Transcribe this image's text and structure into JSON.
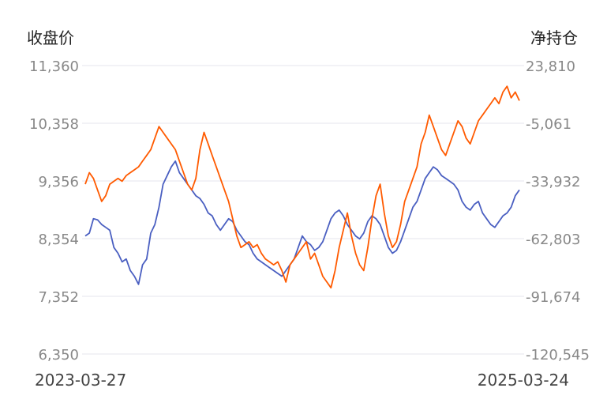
{
  "chart_data": {
    "type": "line",
    "left_axis_title": "收盘价",
    "right_axis_title": "净持仓",
    "left_ticks": [
      "11,360",
      "10,358",
      "9,356",
      "8,354",
      "7,352",
      "6,350"
    ],
    "right_ticks": [
      "23,810",
      "-5,061",
      "-33,932",
      "-62,803",
      "-91,674",
      "-120,545"
    ],
    "left_ylim": [
      6350,
      11360
    ],
    "right_ylim": [
      -120545,
      23810
    ],
    "x_start_label": "2023-03-27",
    "x_end_label": "2025-03-24",
    "grid": true,
    "colors": {
      "close": "#4a5fc1",
      "net": "#ff5a00"
    },
    "series": [
      {
        "key": "close",
        "axis": "left",
        "values": [
          8400,
          8450,
          8700,
          8680,
          8600,
          8550,
          8500,
          8200,
          8100,
          7950,
          8000,
          7800,
          7700,
          7560,
          7900,
          8000,
          8450,
          8600,
          8900,
          9300,
          9450,
          9600,
          9700,
          9500,
          9400,
          9300,
          9200,
          9100,
          9050,
          8950,
          8800,
          8750,
          8600,
          8500,
          8600,
          8700,
          8650,
          8500,
          8400,
          8300,
          8250,
          8100,
          8000,
          7950,
          7900,
          7850,
          7800,
          7750,
          7700,
          7800,
          7900,
          8000,
          8200,
          8400,
          8300,
          8250,
          8150,
          8200,
          8300,
          8500,
          8700,
          8800,
          8850,
          8750,
          8600,
          8500,
          8400,
          8350,
          8450,
          8650,
          8750,
          8700,
          8600,
          8400,
          8200,
          8100,
          8150,
          8300,
          8500,
          8700,
          8900,
          9000,
          9200,
          9400,
          9500,
          9600,
          9550,
          9450,
          9400,
          9350,
          9300,
          9200,
          9000,
          8900,
          8850,
          8950,
          9000,
          8800,
          8700,
          8600,
          8550,
          8650,
          8750,
          8800,
          8900,
          9100,
          9200
        ]
      },
      {
        "key": "net",
        "axis": "left",
        "values": [
          9300,
          9500,
          9400,
          9200,
          9000,
          9100,
          9300,
          9350,
          9400,
          9350,
          9450,
          9500,
          9550,
          9600,
          9700,
          9800,
          9900,
          10100,
          10300,
          10200,
          10100,
          10000,
          9900,
          9700,
          9500,
          9300,
          9200,
          9400,
          9900,
          10200,
          10000,
          9800,
          9600,
          9400,
          9200,
          9000,
          8700,
          8400,
          8200,
          8250,
          8300,
          8200,
          8250,
          8100,
          8000,
          7950,
          7900,
          7950,
          7800,
          7600,
          7900,
          8000,
          8100,
          8200,
          8300,
          8000,
          8100,
          7900,
          7700,
          7600,
          7500,
          7800,
          8200,
          8500,
          8800,
          8400,
          8100,
          7900,
          7800,
          8200,
          8700,
          9100,
          9300,
          8800,
          8400,
          8200,
          8300,
          8600,
          9000,
          9200,
          9400,
          9600,
          10000,
          10200,
          10500,
          10300,
          10100,
          9900,
          9800,
          10000,
          10200,
          10400,
          10300,
          10100,
          10000,
          10200,
          10400,
          10500,
          10600,
          10700,
          10800,
          10700,
          10900,
          11000,
          10800,
          10900,
          10750
        ]
      }
    ]
  }
}
